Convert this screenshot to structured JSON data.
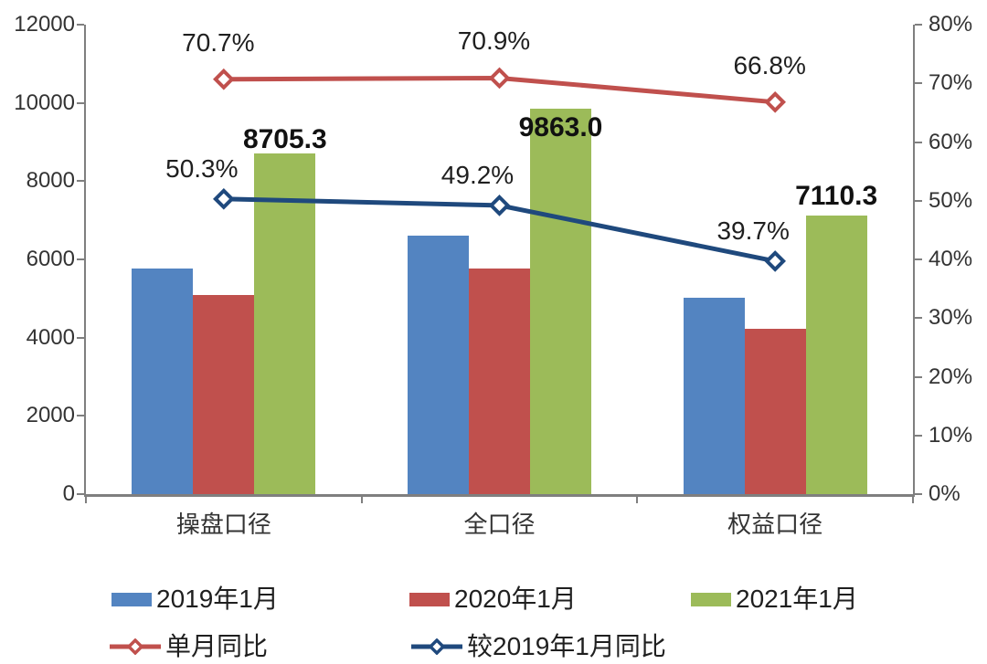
{
  "chart_data": {
    "type": "combo-bar-line",
    "categories": [
      "操盘口径",
      "全口径",
      "权益口径"
    ],
    "bar_series": [
      {
        "name": "2019年1月",
        "color": "#5384C1",
        "values": [
          5770,
          6610,
          5020
        ]
      },
      {
        "name": "2020年1月",
        "color": "#C0504D",
        "values": [
          5080,
          5770,
          4230
        ]
      },
      {
        "name": "2021年1月",
        "color": "#9CBB59",
        "values": [
          8705.3,
          9863.0,
          7110.3
        ],
        "data_labels": [
          "8705.3",
          "9863.0",
          "7110.3"
        ]
      }
    ],
    "line_series": [
      {
        "name": "单月同比",
        "color": "#C0504D",
        "values": [
          70.7,
          70.9,
          66.8
        ],
        "data_labels": [
          "70.7%",
          "70.9%",
          "66.8%"
        ]
      },
      {
        "name": "较2019年1月同比",
        "color": "#1F497D",
        "values": [
          50.3,
          49.2,
          39.7
        ],
        "data_labels": [
          "50.3%",
          "49.2%",
          "39.7%"
        ]
      }
    ],
    "left_axis": {
      "min": 0,
      "max": 12000,
      "tick_labels": [
        "12000",
        "10000",
        "8000",
        "6000",
        "4000",
        "2000",
        "0"
      ]
    },
    "right_axis": {
      "min": 0,
      "max": 80,
      "tick_labels": [
        "80%",
        "70%",
        "60%",
        "50%",
        "40%",
        "30%",
        "20%",
        "10%",
        "0%"
      ]
    },
    "legend_position": "bottom",
    "grid": "off"
  }
}
